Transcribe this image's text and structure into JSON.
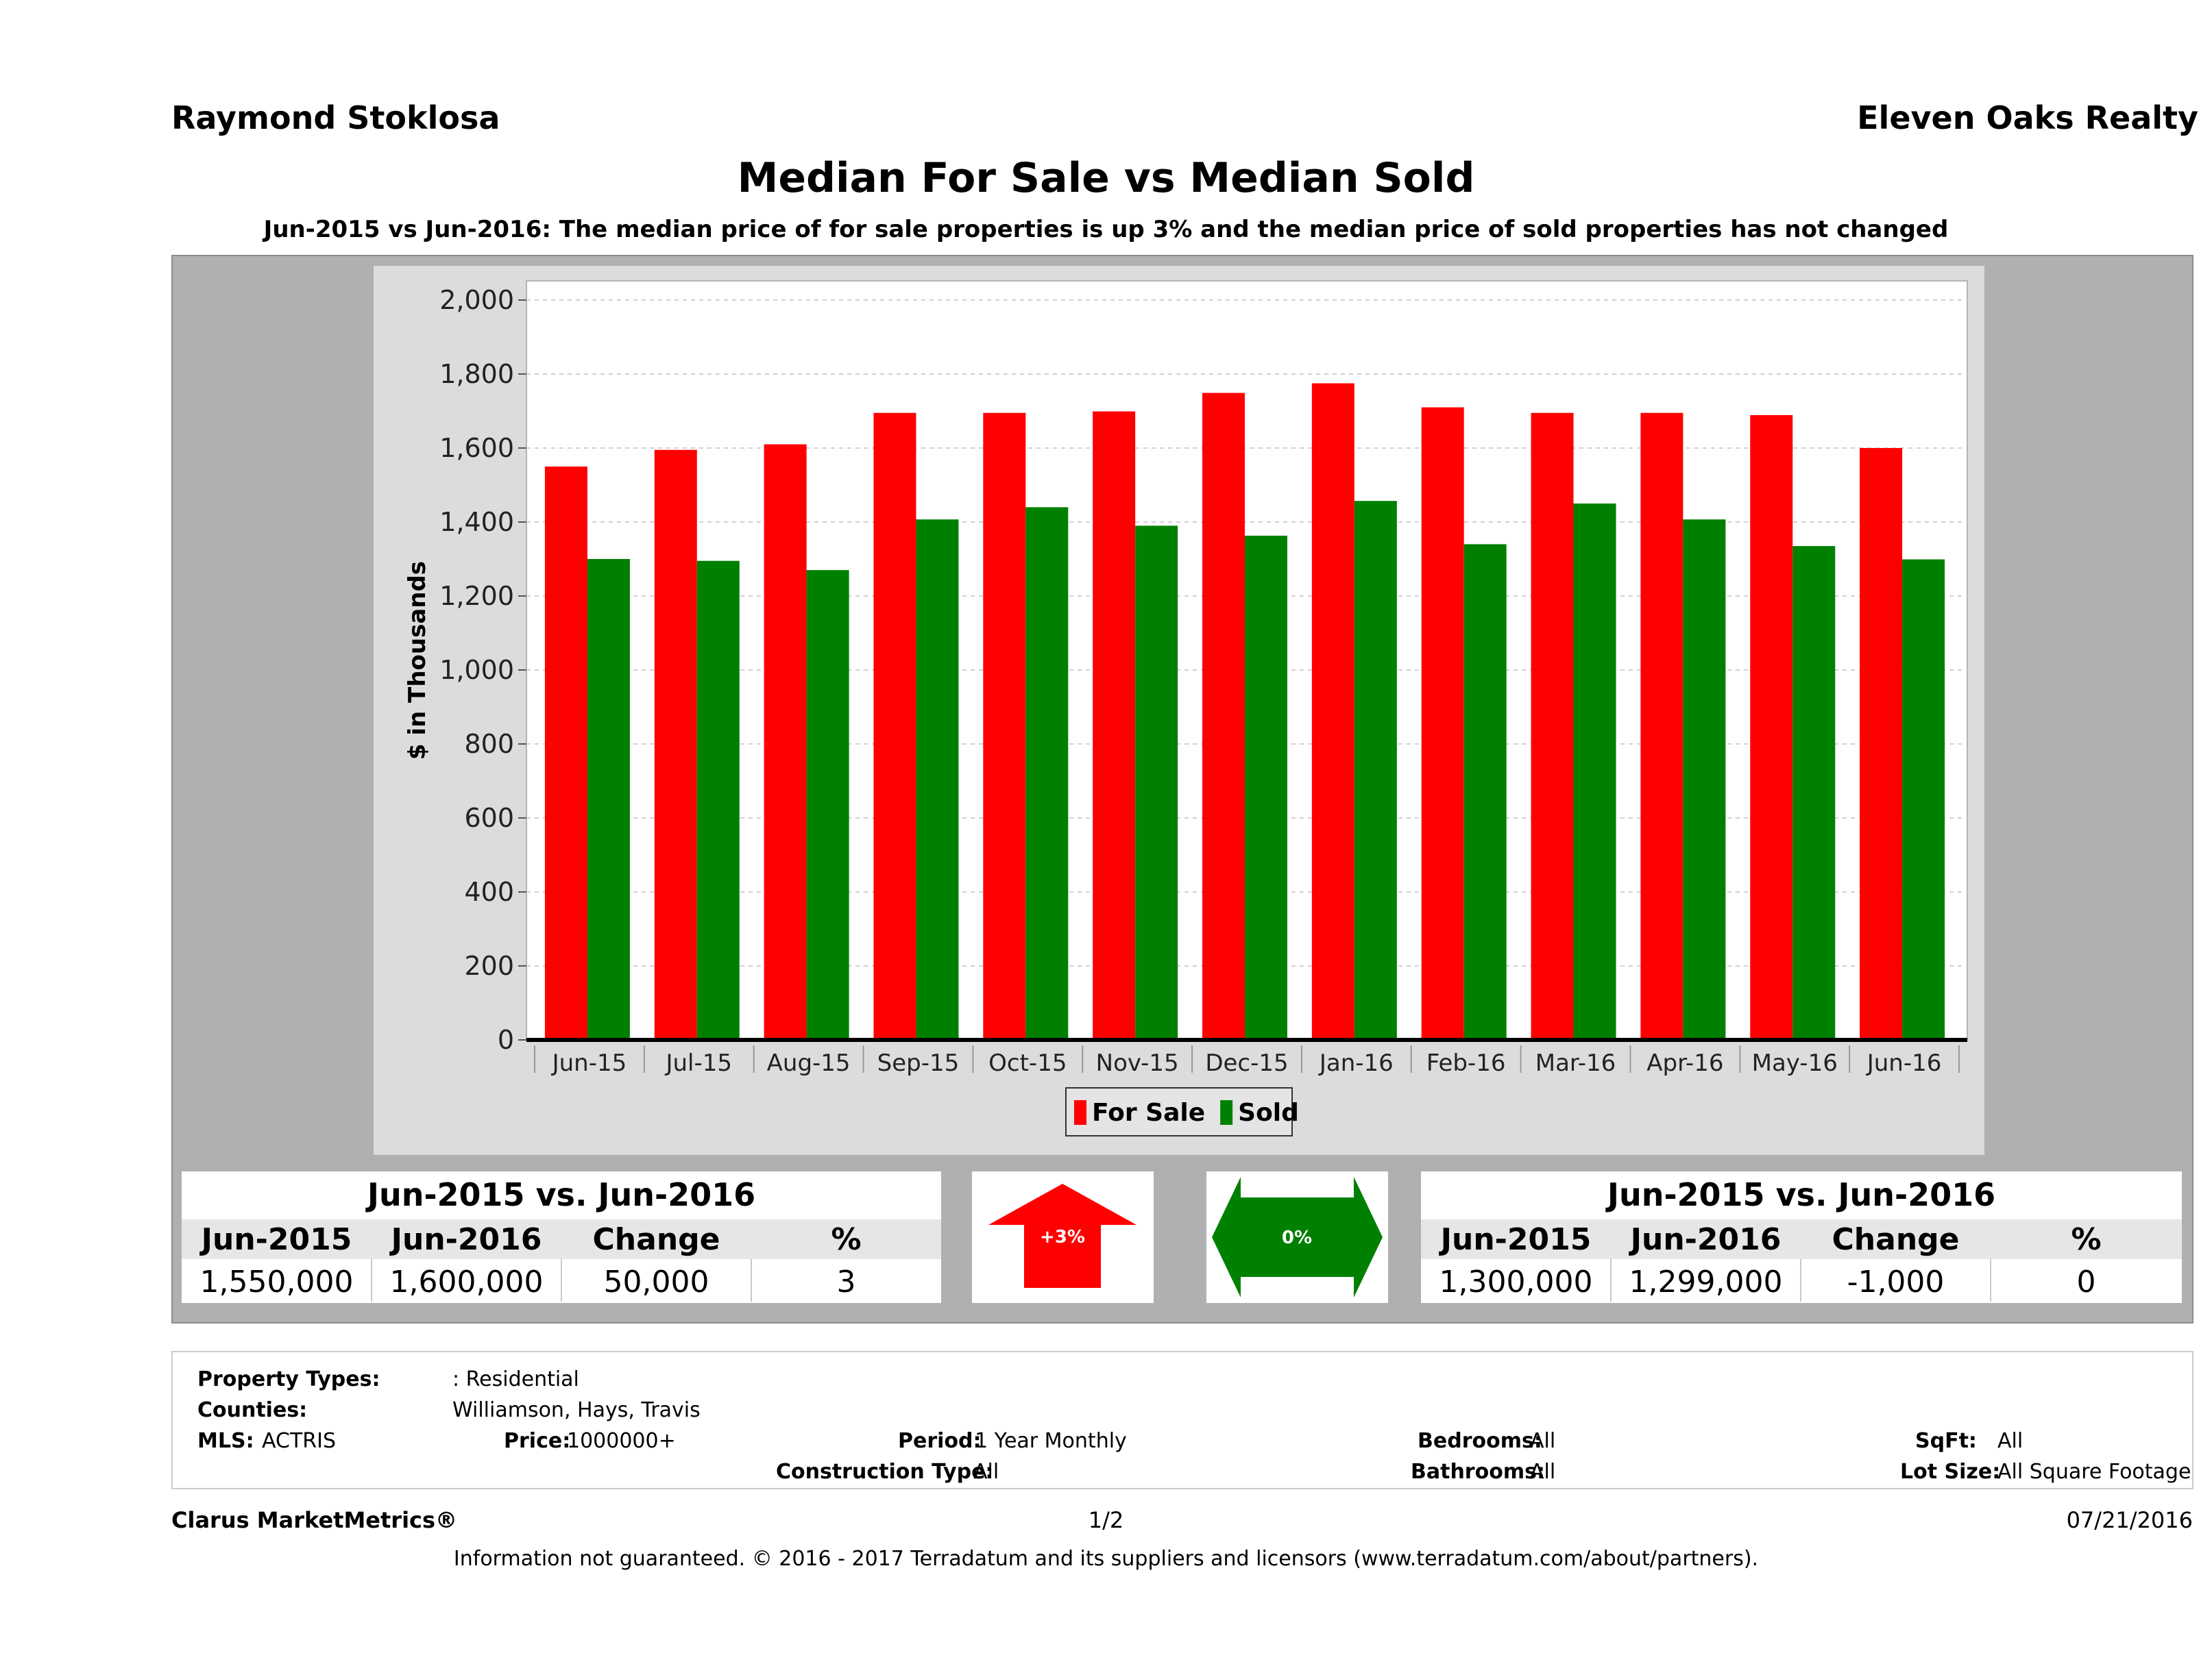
{
  "header": {
    "agent": "Raymond Stoklosa",
    "company": "Eleven Oaks Realty",
    "title": "Median For Sale vs Median Sold",
    "subtitle": "Jun-2015 vs Jun-2016: The median price of for sale properties is up 3% and the median price of sold properties has not changed"
  },
  "colors": {
    "for_sale": "#ff0000",
    "sold": "#008000",
    "panel": "#b0b0b0",
    "chart_bg": "#dcdcdc"
  },
  "chart_data": {
    "type": "bar",
    "ylabel": "$ in Thousands",
    "ylim": [
      0,
      2000
    ],
    "yticks": [
      "0",
      "200",
      "400",
      "600",
      "800",
      "1,000",
      "1,200",
      "1,400",
      "1,600",
      "1,800",
      "2,000"
    ],
    "categories": [
      "Jun-15",
      "Jul-15",
      "Aug-15",
      "Sep-15",
      "Oct-15",
      "Nov-15",
      "Dec-15",
      "Jan-16",
      "Feb-16",
      "Mar-16",
      "Apr-16",
      "May-16",
      "Jun-16"
    ],
    "series": [
      {
        "name": "For Sale",
        "color": "#ff0000",
        "values": [
          1550,
          1595,
          1610,
          1695,
          1695,
          1699,
          1749,
          1775,
          1710,
          1695,
          1695,
          1689,
          1600
        ]
      },
      {
        "name": "Sold",
        "color": "#008000",
        "values": [
          1300,
          1295,
          1270,
          1407,
          1440,
          1390,
          1363,
          1457,
          1340,
          1450,
          1407,
          1335,
          1299
        ]
      }
    ],
    "legend": "bottom-center",
    "grid": true
  },
  "for_sale_stats": {
    "heading": "Jun-2015 vs. Jun-2016",
    "columns": [
      "Jun-2015",
      "Jun-2016",
      "Change",
      "%"
    ],
    "values": [
      "1,550,000",
      "1,600,000",
      "50,000",
      "3"
    ],
    "badge": "+3%"
  },
  "sold_stats": {
    "heading": "Jun-2015 vs. Jun-2016",
    "columns": [
      "Jun-2015",
      "Jun-2016",
      "Change",
      "%"
    ],
    "values": [
      "1,300,000",
      "1,299,000",
      "-1,000",
      "0"
    ],
    "badge": "0%"
  },
  "criteria": {
    "property_types_label": "Property Types:",
    "property_types_value": ": Residential",
    "counties_label": "Counties:",
    "counties_value": "Williamson, Hays, Travis",
    "mls_label": "MLS:",
    "mls_value": "ACTRIS",
    "price_label": "Price:",
    "price_value": "1000000+",
    "period_label": "Period:",
    "period_value": "1 Year Monthly",
    "construction_label": "Construction Type:",
    "construction_value": "All",
    "bedrooms_label": "Bedrooms:",
    "bedrooms_value": "All",
    "bathrooms_label": "Bathrooms:",
    "bathrooms_value": "All",
    "sqft_label": "SqFt:",
    "sqft_value": "All",
    "lotsize_label": "Lot Size:",
    "lotsize_value": "All Square Footage"
  },
  "footer": {
    "brand": "Clarus MarketMetrics®",
    "page": "1/2",
    "date": "07/21/2016",
    "disclaimer": "Information not guaranteed. © 2016 - 2017 Terradatum and its suppliers and licensors (www.terradatum.com/about/partners)."
  }
}
